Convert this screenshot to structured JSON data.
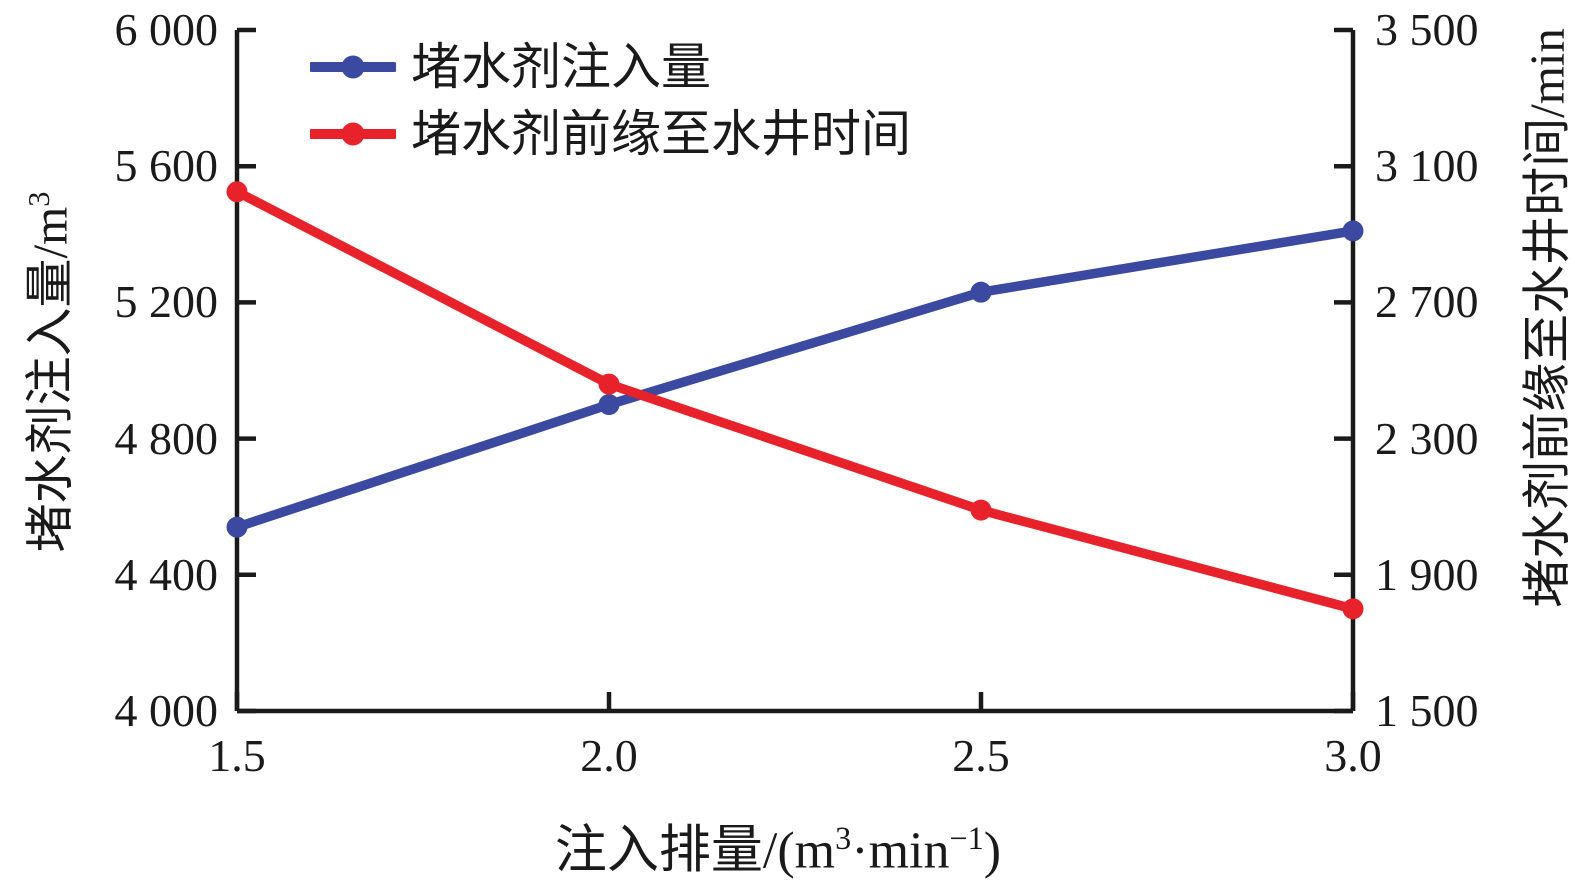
{
  "chart_data": {
    "type": "line",
    "x": [
      1.5,
      2.0,
      2.5,
      3.0
    ],
    "x_tick_labels": [
      "1.5",
      "2.0",
      "2.5",
      "3.0"
    ],
    "xlabel_parts": {
      "pre": "注入排量/(m",
      "sup1": "3",
      "mid": "·min",
      "sup2": "−1",
      "post": ")"
    },
    "left_axis": {
      "label_pre": "堵水剂注入量/m",
      "label_sup": "3",
      "range": [
        4000,
        6000
      ],
      "ticks": [
        4000,
        4400,
        4800,
        5200,
        5600,
        6000
      ],
      "tick_labels": [
        "4 000",
        "4 400",
        "4 800",
        "5 200",
        "5 600",
        "6 000"
      ]
    },
    "right_axis": {
      "label": "堵水剂前缘至水井时间/min",
      "range": [
        1500,
        3500
      ],
      "ticks": [
        1500,
        1900,
        2300,
        2700,
        3100,
        3500
      ],
      "tick_labels": [
        "1 500",
        "1 900",
        "2 300",
        "2 700",
        "3 100",
        "3 500"
      ]
    },
    "series": [
      {
        "name": "堵水剂注入量",
        "axis": "left",
        "color": "#3b49a1",
        "values": [
          4540,
          4900,
          5230,
          5410
        ]
      },
      {
        "name": "堵水剂前缘至水井时间",
        "axis": "right",
        "color": "#e7222a",
        "values": [
          3025,
          2460,
          2090,
          1800
        ]
      }
    ],
    "legend_position": "top-left-inside",
    "grid": false
  },
  "colors": {
    "axis": "#1a1a1a",
    "background": "#ffffff",
    "text": "#1a1a1a"
  }
}
